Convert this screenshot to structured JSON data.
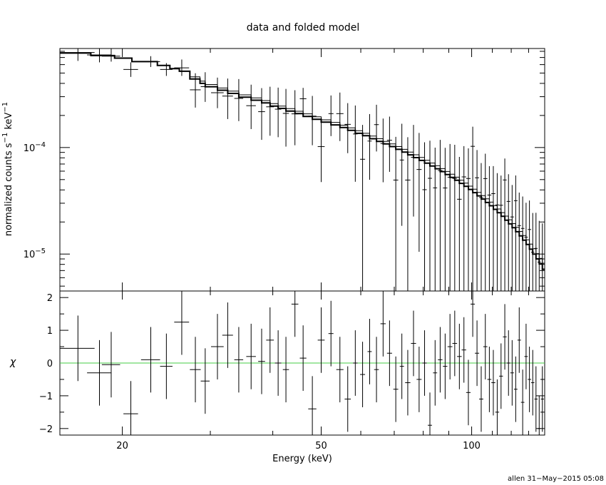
{
  "chart_data": [
    {
      "type": "line",
      "title": "data and folded model",
      "ylabel_main": "normalized counts s",
      "ylabel_exp1": "−1",
      "ylabel_unit": "keV",
      "ylabel_exp2": "−1",
      "x_scale": "log",
      "y_scale": "log",
      "xlim": [
        15,
        140
      ],
      "ylim": [
        4.5e-06,
        0.00085
      ],
      "yticks": [
        {
          "value": 0.0001,
          "base": "10",
          "exp": "−4"
        },
        {
          "value": 1e-05,
          "base": "10",
          "exp": "−5"
        }
      ],
      "series": [
        {
          "kind": "data",
          "x": [
            16.3,
            18.0,
            19.0,
            20.8,
            22.8,
            24.5,
            26.3,
            28.0,
            29.3,
            31.0,
            32.5,
            34.2,
            36.2,
            38.0,
            39.5,
            41.0,
            42.5,
            44.3,
            46.0,
            48.0,
            50.0,
            52.3,
            54.5,
            56.5,
            58.5,
            60.5,
            62.5,
            64.5,
            66.5,
            68.5,
            70.5,
            72.5,
            74.5,
            76.5,
            78.5,
            80.5,
            82.5,
            84.5,
            86.5,
            88.5,
            90.5,
            92.5,
            94.5,
            96.5,
            98.5,
            100.5,
            102.5,
            104.5,
            106.5,
            108.5,
            110.5,
            112.5,
            114.5,
            116.5,
            118.5,
            120.5,
            122.5,
            124.5,
            126.5,
            128.5,
            130.5,
            132.5,
            134.5,
            136.5,
            138.5
          ],
          "y": [
            0.00078,
            0.00074,
            0.00072,
            0.00054,
            0.00064,
            0.00054,
            0.00056,
            0.000348,
            0.000373,
            0.000327,
            0.000304,
            0.000289,
            0.000247,
            0.000217,
            0.000241,
            0.000229,
            0.000209,
            0.000207,
            0.000287,
            0.000197,
            0.000102,
            0.000208,
            0.000208,
            0.000165,
            0.000134,
            7.76e-05,
            0.000115,
            0.000164,
            0.000109,
            0.000117,
            4.95e-05,
            7.63e-05,
            4.95e-05,
            8.1e-05,
            6.22e-05,
            4.02e-05,
            5.14e-05,
            4.18e-05,
            6.08e-05,
            4.17e-05,
            5.27e-05,
            5.13e-05,
            3.27e-05,
            5.3e-05,
            5.12e-05,
            0.0001026,
            5.2e-05,
            3.39e-05,
            5.11e-05,
            3.58e-05,
            3.69e-05,
            2.89e-05,
            2.87e-05,
            4.96e-05,
            3.12e-05,
            2.23e-05,
            3.17e-05,
            1.85e-05,
            1.74e-05,
            1.44e-05,
            1.7e-05,
            1.04e-05,
            1.13e-05,
            8.4e-06,
            8.2e-06
          ],
          "x_half_width": [
            1.3,
            1.0,
            0.8,
            0.7,
            1.0,
            0.7,
            0.9,
            0.7,
            0.6,
            0.9,
            0.8,
            0.7,
            0.8,
            0.6,
            0.7,
            0.6,
            0.6,
            0.7,
            0.7,
            0.9,
            0.8,
            0.6,
            0.9,
            0.8,
            0.6,
            0.7,
            0.6,
            0.7,
            0.8,
            0.8,
            0.8,
            0.7,
            0.9,
            0.9,
            0.9,
            0.8,
            0.8,
            0.8,
            0.9,
            0.9,
            1.0,
            1.0,
            1.0,
            1.0,
            1.0,
            1.0,
            1.0,
            1.0,
            1.0,
            1.0,
            1.0,
            1.0,
            1.0,
            1.0,
            1.0,
            1.0,
            1.0,
            1.0,
            1.0,
            1.0,
            1.0,
            1.0,
            1.0,
            1.0,
            1.0
          ],
          "y_low": [
            0.00065,
            0.00063,
            0.00064,
            0.00046,
            0.00057,
            0.00047,
            0.00047,
            0.000237,
            0.000268,
            0.000234,
            0.000185,
            0.000177,
            0.000149,
            0.000118,
            0.000129,
            0.000125,
            0.000102,
            0.000105,
            0.000209,
            0.000105,
            4.74e-05,
            0.000128,
            0.000115,
            8.85e-05,
            4.77e-05,
            4.5e-06,
            4.98e-05,
            9.18e-05,
            4.72e-05,
            5.91e-05,
            4.5e-06,
            1.84e-05,
            4.5e-06,
            2.25e-05,
            1.05e-05,
            4.5e-06,
            4.5e-06,
            4.5e-06,
            4.5e-06,
            4.5e-06,
            4.5e-06,
            4.5e-06,
            4.5e-06,
            4.5e-06,
            4.5e-06,
            4.5e-06,
            4.5e-06,
            4.5e-06,
            4.5e-06,
            4.5e-06,
            4.5e-06,
            4.5e-06,
            4.5e-06,
            4.5e-06,
            4.5e-06,
            4.5e-06,
            4.5e-06,
            4.5e-06,
            4.5e-06,
            4.5e-06,
            4.5e-06,
            4.5e-06,
            4.5e-06,
            4.5e-06,
            4.5e-06
          ],
          "y_high": [
            0.00085,
            0.00085,
            0.00085,
            0.00063,
            0.00072,
            0.00062,
            0.00067,
            0.000498,
            0.000509,
            0.000453,
            0.000444,
            0.000439,
            0.000389,
            0.000361,
            0.000372,
            0.000365,
            0.000355,
            0.000345,
            0.000363,
            0.000305,
            0.000173,
            0.000308,
            0.000328,
            0.000261,
            0.000248,
            0.000163,
            0.000206,
            0.000252,
            0.000187,
            0.000195,
            0.000126,
            0.000167,
            0.000125,
            0.000163,
            0.000137,
            0.000112,
            0.000116,
            9.98e-05,
            0.000118,
            9.94e-05,
            0.000108,
            0.000106,
            8.16e-05,
            0.000103,
            9.83e-05,
            0.000157,
            9.47e-05,
            7.14e-05,
            8.75e-05,
            6.68e-05,
            6.69e-05,
            5.75e-05,
            5.46e-05,
            7.89e-05,
            5.62e-05,
            4.45e-05,
            5.47e-05,
            3.78e-05,
            3.47e-05,
            3.03e-05,
            3.18e-05,
            2.43e-05,
            2.44e-05,
            2.05e-05,
            1.94e-05
          ]
        },
        {
          "kind": "model",
          "x_edges": [
            15,
            17.3,
            19.3,
            20.9,
            23.5,
            24.9,
            26.0,
            27.3,
            28.6,
            29.3,
            31.0,
            32.5,
            34.2,
            36.2,
            38.0,
            39.5,
            41.0,
            42.5,
            44.3,
            46.0,
            48.0,
            50.0,
            52.3,
            54.5,
            56.5,
            58.5,
            60.5,
            62.5,
            64.5,
            66.5,
            68.5,
            70.5,
            72.5,
            74.5,
            76.5,
            78.5,
            80.5,
            82.5,
            84.5,
            86.5,
            88.5,
            90.5,
            92.5,
            94.5,
            96.5,
            98.5,
            100.5,
            102.5,
            104.5,
            106.5,
            108.5,
            110.5,
            112.5,
            114.5,
            116.5,
            118.5,
            120.5,
            122.5,
            124.5,
            126.5,
            128.5,
            130.5,
            132.5,
            134.5,
            136.5,
            138.5,
            140
          ],
          "thin": [
            0.00077,
            0.00073,
            0.00069,
            0.00064,
            0.00059,
            0.00055,
            0.00052,
            0.00046,
            0.00042,
            0.00039,
            0.000362,
            0.000338,
            0.000312,
            0.000292,
            0.000276,
            0.000258,
            0.000245,
            0.000232,
            0.000219,
            0.000207,
            0.000194,
            0.000182,
            0.000172,
            0.000162,
            0.000153,
            0.000144,
            0.000136,
            0.000128,
            0.000121,
            0.000114,
            0.000108,
            0.000102,
            9.61e-05,
            9.06e-05,
            8.55e-05,
            8.06e-05,
            7.59e-05,
            7.15e-05,
            6.74e-05,
            6.34e-05,
            5.96e-05,
            5.61e-05,
            5.27e-05,
            4.94e-05,
            4.63e-05,
            4.34e-05,
            4.06e-05,
            3.79e-05,
            3.54e-05,
            3.3e-05,
            3.07e-05,
            2.85e-05,
            2.65e-05,
            2.45e-05,
            2.27e-05,
            2.1e-05,
            1.93e-05,
            1.78e-05,
            1.63e-05,
            1.49e-05,
            1.36e-05,
            1.24e-05,
            1.12e-05,
            1.01e-05,
            9.1e-06,
            8.2e-06
          ],
          "thick": [
            0.00077,
            0.00073,
            0.00069,
            0.00064,
            0.00059,
            0.00055,
            0.00052,
            0.00044,
            0.0004,
            0.000372,
            0.000345,
            0.000322,
            0.000297,
            0.000278,
            0.000262,
            0.000245,
            0.000233,
            0.00022,
            0.000208,
            0.000196,
            0.000184,
            0.000173,
            0.000163,
            0.000154,
            0.000145,
            0.000136,
            0.000129,
            0.000121,
            0.000114,
            0.000108,
            0.000102,
            9.61e-05,
            9.05e-05,
            8.53e-05,
            8.04e-05,
            7.57e-05,
            7.13e-05,
            6.71e-05,
            6.32e-05,
            5.94e-05,
            5.58e-05,
            5.24e-05,
            4.92e-05,
            4.61e-05,
            4.32e-05,
            4.04e-05,
            3.77e-05,
            3.52e-05,
            3.28e-05,
            3.05e-05,
            2.84e-05,
            2.63e-05,
            2.44e-05,
            2.26e-05,
            2.08e-05,
            1.92e-05,
            1.77e-05,
            1.62e-05,
            1.48e-05,
            1.35e-05,
            1.23e-05,
            1.11e-05,
            1e-05,
            9e-06,
            8.1e-06,
            7.2e-06
          ]
        }
      ]
    },
    {
      "type": "line",
      "ylabel": "χ",
      "xlabel": "Energy (keV)",
      "x_scale": "log",
      "xlim": [
        15,
        140
      ],
      "ylim": [
        -2.2,
        2.2
      ],
      "yticks": [
        "2",
        "1",
        "0",
        "−1",
        "−2"
      ],
      "xticks": [
        "20",
        "50",
        "100"
      ],
      "zero_line_color": "#44cc44",
      "series": [
        {
          "name": "",
          "x": [
            16.3,
            18.0,
            19.0,
            20.8,
            22.8,
            24.5,
            26.3,
            28.0,
            29.3,
            31.0,
            32.5,
            34.2,
            36.2,
            38.0,
            39.5,
            41.0,
            42.5,
            44.3,
            46.0,
            48.0,
            50.0,
            52.3,
            54.5,
            56.5,
            58.5,
            60.5,
            62.5,
            64.5,
            66.5,
            68.5,
            70.5,
            72.5,
            74.5,
            76.5,
            78.5,
            80.5,
            82.5,
            84.5,
            86.5,
            88.5,
            90.5,
            92.5,
            94.5,
            96.5,
            98.5,
            100.5,
            102.5,
            104.5,
            106.5,
            108.5,
            110.5,
            112.5,
            114.5,
            116.5,
            118.5,
            120.5,
            122.5,
            124.5,
            126.5,
            128.5,
            130.5,
            132.5,
            134.5,
            136.5,
            138.5
          ],
          "y": [
            0.45,
            -0.3,
            -0.05,
            -1.55,
            0.1,
            -0.1,
            1.25,
            -0.2,
            -0.55,
            0.5,
            0.85,
            0.1,
            0.2,
            0.05,
            0.7,
            0.0,
            -0.2,
            1.8,
            0.15,
            -1.4,
            0.7,
            0.9,
            -0.2,
            -1.1,
            0.0,
            -0.35,
            0.35,
            -0.2,
            1.2,
            0.3,
            -0.8,
            -0.1,
            -0.6,
            0.6,
            -0.5,
            0.0,
            -1.9,
            -0.3,
            0.1,
            -0.1,
            0.5,
            0.6,
            0.2,
            0.4,
            -0.9,
            1.8,
            0.3,
            -1.1,
            0.5,
            -0.5,
            -0.6,
            -1.5,
            -0.4,
            0.8,
            0.0,
            -0.3,
            -0.8,
            0.7,
            -1.2,
            0.2,
            -0.5,
            -0.6,
            -1.1,
            -2.0,
            -1.1
          ],
          "x_half_width": [
            1.3,
            1.0,
            0.8,
            0.7,
            1.0,
            0.7,
            0.9,
            0.7,
            0.6,
            0.9,
            0.8,
            0.7,
            0.8,
            0.6,
            0.7,
            0.6,
            0.6,
            0.7,
            0.7,
            0.9,
            0.8,
            0.6,
            0.9,
            0.8,
            0.6,
            0.7,
            0.6,
            0.7,
            0.8,
            0.8,
            0.8,
            0.7,
            0.9,
            0.9,
            0.9,
            0.8,
            0.8,
            0.8,
            0.9,
            0.9,
            1.0,
            1.0,
            1.0,
            1.0,
            1.0,
            1.0,
            1.0,
            1.0,
            1.0,
            1.0,
            1.0,
            1.0,
            1.0,
            1.0,
            1.0,
            1.0,
            1.0,
            1.0,
            1.0,
            1.0,
            1.0,
            1.0,
            1.0,
            1.0,
            1.0
          ],
          "y_err": [
            1.0,
            1.0,
            1.0,
            1.0,
            1.0,
            1.0,
            1.0,
            1.0,
            1.0,
            1.0,
            1.0,
            1.0,
            1.0,
            1.0,
            1.0,
            1.0,
            1.0,
            1.0,
            1.0,
            1.0,
            1.0,
            1.0,
            1.0,
            1.0,
            1.0,
            1.0,
            1.0,
            1.0,
            1.0,
            1.0,
            1.0,
            1.0,
            1.0,
            1.0,
            1.0,
            1.0,
            1.0,
            1.0,
            1.0,
            1.0,
            1.0,
            1.0,
            1.0,
            1.0,
            1.0,
            1.0,
            1.0,
            1.0,
            1.0,
            1.0,
            1.0,
            1.0,
            1.0,
            1.0,
            1.0,
            1.0,
            1.0,
            1.0,
            1.0,
            1.0,
            1.0,
            1.0,
            1.0,
            1.0,
            1.0
          ]
        }
      ]
    }
  ],
  "footer": {
    "stamp": "allen 31−May−2015 05:08"
  }
}
